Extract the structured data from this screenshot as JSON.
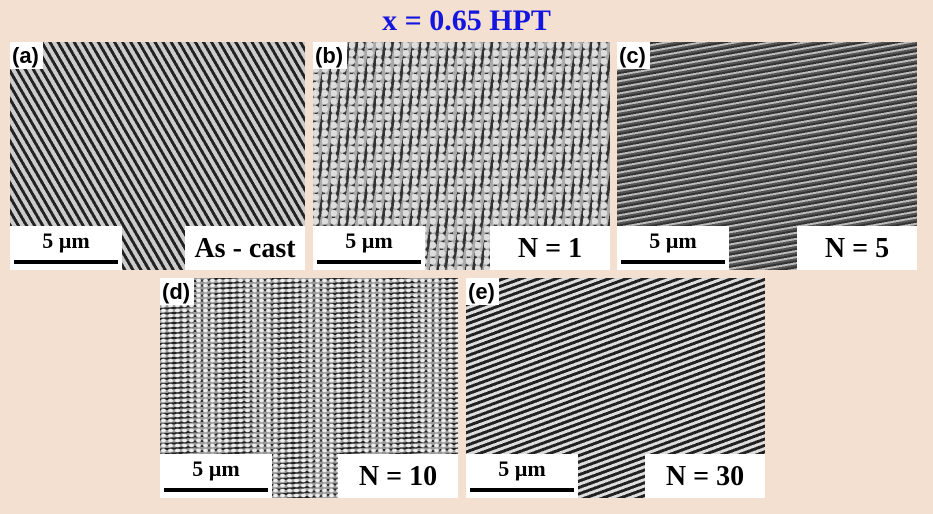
{
  "title": "x = 0.65 HPT",
  "panels": [
    {
      "label": "(a)",
      "scale_bar": "5 µm",
      "condition": "As - cast"
    },
    {
      "label": "(b)",
      "scale_bar": "5 µm",
      "condition": "N = 1"
    },
    {
      "label": "(c)",
      "scale_bar": "5 µm",
      "condition": "N = 5"
    },
    {
      "label": "(d)",
      "scale_bar": "5 µm",
      "condition": "N = 10"
    },
    {
      "label": "(e)",
      "scale_bar": "5 µm",
      "condition": "N = 30"
    }
  ]
}
